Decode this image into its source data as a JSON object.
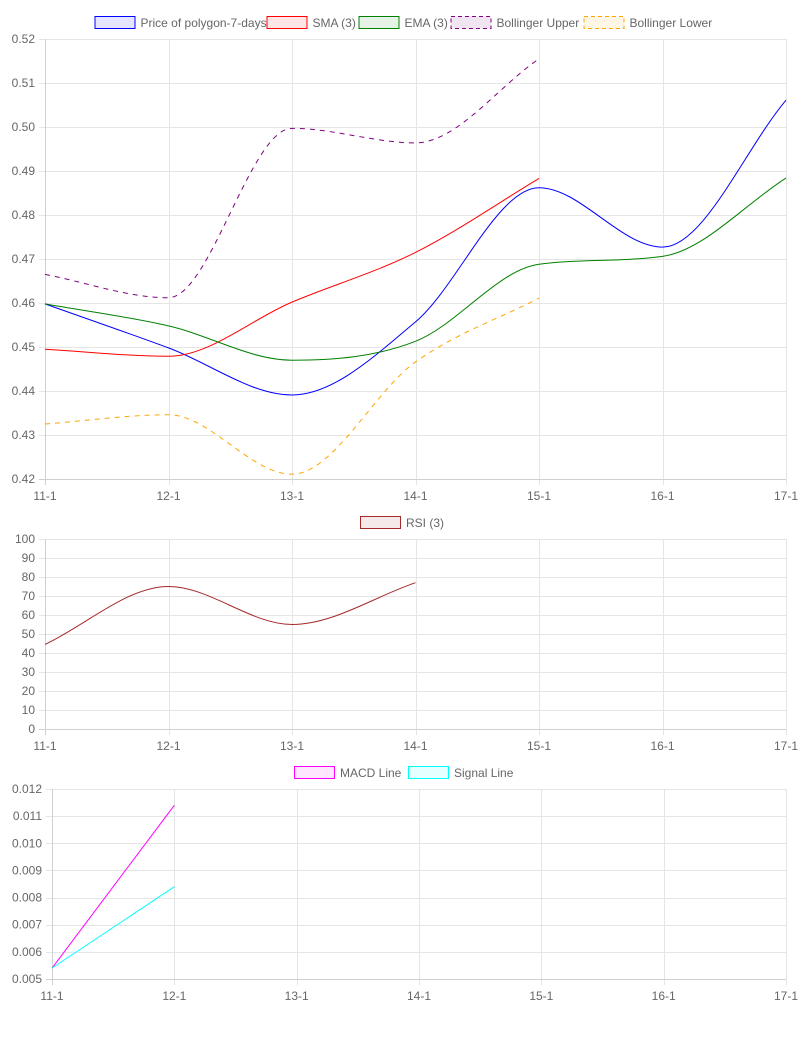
{
  "chart_data": [
    {
      "type": "line",
      "categories": [
        "11-1",
        "12-1",
        "13-1",
        "14-1",
        "15-1",
        "16-1",
        "17-1"
      ],
      "ylim": [
        0.42,
        0.52
      ],
      "yticks": [
        "0.52",
        "0.51",
        "0.50",
        "0.49",
        "0.48",
        "0.47",
        "0.46",
        "0.45",
        "0.44",
        "0.43",
        "0.42"
      ],
      "grid": true,
      "legend_position": "top",
      "series": [
        {
          "name": "Price of polygon-7-days",
          "color": "#0000ff",
          "dashed": false,
          "values": [
            0.4598,
            0.4498,
            0.4391,
            0.4557,
            0.4862,
            0.4727,
            0.5061
          ]
        },
        {
          "name": "SMA (3)",
          "color": "#ff0000",
          "dashed": false,
          "values": [
            0.4495,
            0.4479,
            0.4602,
            0.4715,
            0.4883,
            null,
            null
          ]
        },
        {
          "name": "EMA (3)",
          "color": "#008000",
          "dashed": false,
          "values": [
            0.4598,
            0.4548,
            0.447,
            0.4513,
            0.4688,
            0.4706,
            0.4884
          ]
        },
        {
          "name": "Bollinger Upper",
          "color": "#800080",
          "dashed": true,
          "values": [
            0.4665,
            0.4612,
            0.4997,
            0.4964,
            0.5155,
            null,
            null
          ]
        },
        {
          "name": "Bollinger Lower",
          "color": "#ffa500",
          "dashed": true,
          "values": [
            0.4325,
            0.4346,
            0.4211,
            0.4466,
            0.4611,
            null,
            null
          ]
        }
      ]
    },
    {
      "type": "line",
      "categories": [
        "11-1",
        "12-1",
        "13-1",
        "14-1",
        "15-1",
        "16-1",
        "17-1"
      ],
      "ylim": [
        0,
        100
      ],
      "yticks": [
        "100",
        "90",
        "80",
        "70",
        "60",
        "50",
        "40",
        "30",
        "20",
        "10",
        "0"
      ],
      "grid": true,
      "legend_position": "top",
      "series": [
        {
          "name": "RSI (3)",
          "color": "#a52a2a",
          "dashed": false,
          "values": [
            44.5,
            75,
            55,
            77,
            null,
            null,
            null
          ]
        }
      ]
    },
    {
      "type": "line",
      "categories": [
        "11-1",
        "12-1",
        "13-1",
        "14-1",
        "15-1",
        "16-1",
        "17-1"
      ],
      "ylim": [
        0.005,
        0.012
      ],
      "yticks": [
        "0.012",
        "0.011",
        "0.010",
        "0.009",
        "0.008",
        "0.007",
        "0.006",
        "0.005"
      ],
      "grid": true,
      "legend_position": "top",
      "series": [
        {
          "name": "MACD Line",
          "color": "#ff00ff",
          "dashed": false,
          "values": [
            0.0054,
            0.0114,
            null,
            null,
            null,
            null,
            null
          ]
        },
        {
          "name": "Signal Line",
          "color": "#00ffff",
          "dashed": false,
          "values": [
            0.0054,
            0.0084,
            null,
            null,
            null,
            null,
            null
          ]
        }
      ]
    }
  ]
}
